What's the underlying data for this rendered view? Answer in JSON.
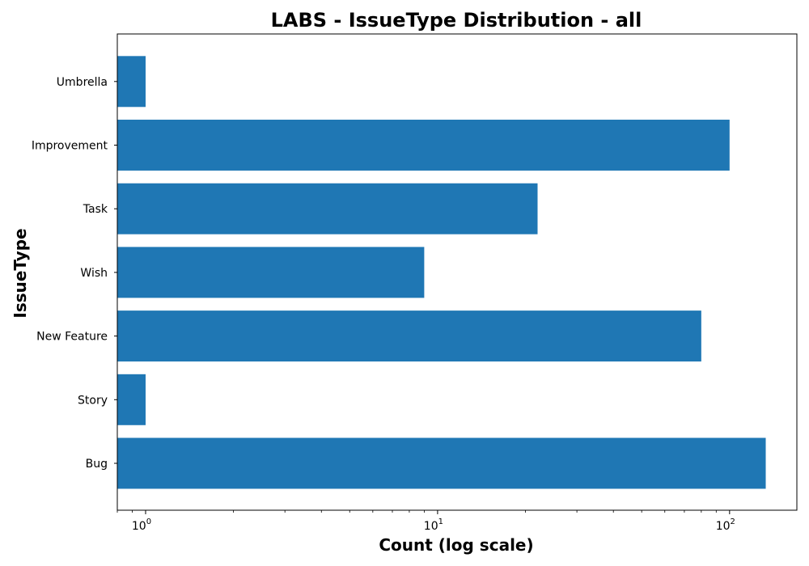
{
  "chart_data": {
    "type": "bar",
    "orientation": "horizontal",
    "title": "LABS - IssueType Distribution - all",
    "xlabel": "Count (log scale)",
    "ylabel": "IssueType",
    "x_scale": "log",
    "xlim": [
      0.8,
      170
    ],
    "categories": [
      "Bug",
      "Story",
      "New Feature",
      "Wish",
      "Task",
      "Improvement",
      "Umbrella"
    ],
    "values": [
      133,
      1,
      80,
      9,
      22,
      100,
      1
    ],
    "x_ticks": [
      {
        "base": "10",
        "exp": "0",
        "value": 1
      },
      {
        "base": "10",
        "exp": "1",
        "value": 10
      },
      {
        "base": "10",
        "exp": "2",
        "value": 100
      }
    ],
    "bar_color": "#1f77b4",
    "grid": false,
    "legend": "none"
  }
}
